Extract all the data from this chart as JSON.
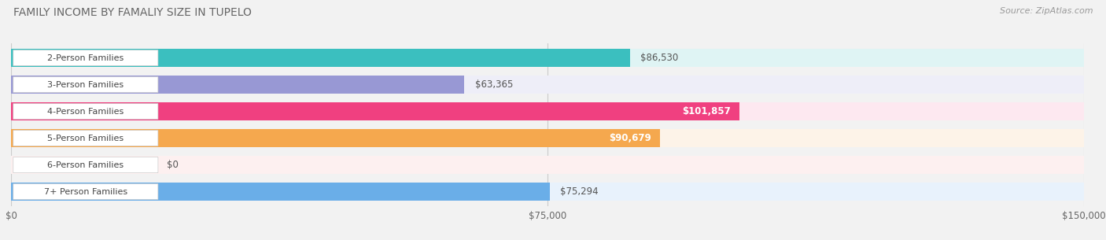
{
  "title": "FAMILY INCOME BY FAMALIY SIZE IN TUPELO",
  "source": "Source: ZipAtlas.com",
  "categories": [
    "2-Person Families",
    "3-Person Families",
    "4-Person Families",
    "5-Person Families",
    "6-Person Families",
    "7+ Person Families"
  ],
  "values": [
    86530,
    63365,
    101857,
    90679,
    0,
    75294
  ],
  "value_labels": [
    "$86,530",
    "$63,365",
    "$101,857",
    "$90,679",
    "$0",
    "$75,294"
  ],
  "bar_colors": [
    "#3bbfbf",
    "#9898d4",
    "#f04080",
    "#f5a84e",
    "#f5a8a8",
    "#6aaee8"
  ],
  "bar_bg_colors": [
    "#dff4f4",
    "#eeeef8",
    "#fde8f0",
    "#fdf3e8",
    "#fdf0f0",
    "#e8f2fc"
  ],
  "max_value": 150000,
  "xtick_values": [
    0,
    75000,
    150000
  ],
  "xtick_labels": [
    "$0",
    "$75,000",
    "$150,000"
  ],
  "label_inside": [
    false,
    false,
    true,
    true,
    false,
    false
  ],
  "value_label_color": [
    "#555555",
    "#555555",
    "#ffffff",
    "#ffffff",
    "#555555",
    "#555555"
  ],
  "background_color": "#f2f2f2"
}
